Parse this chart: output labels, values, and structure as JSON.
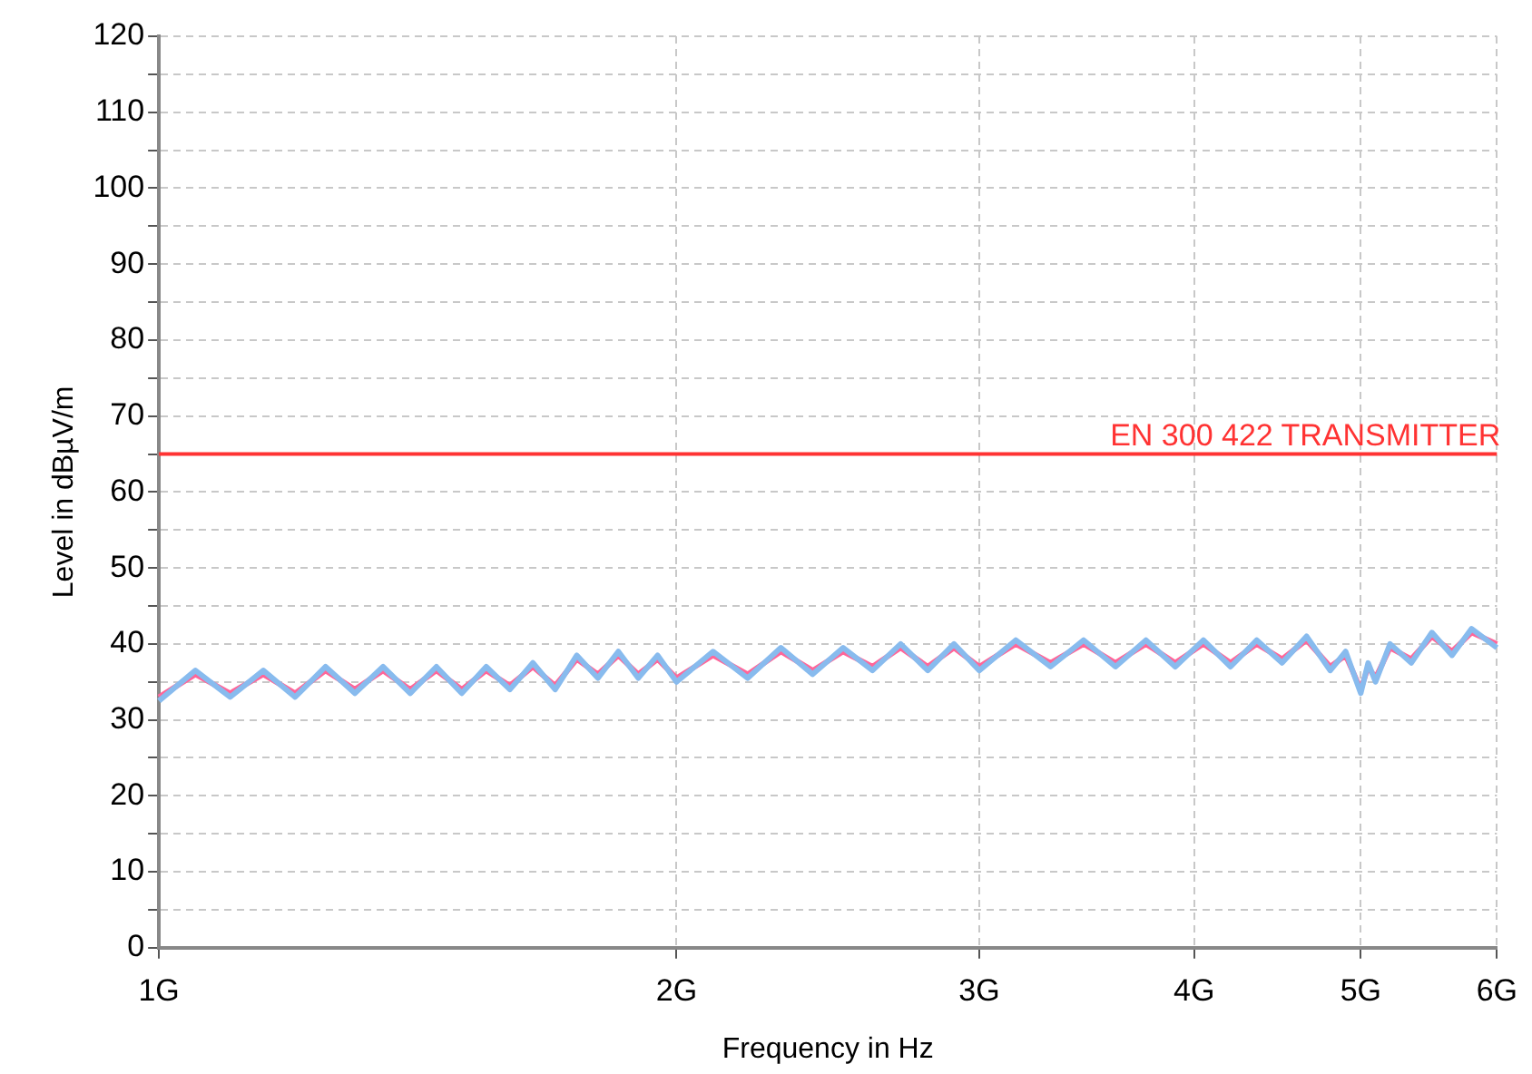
{
  "chart_data": {
    "type": "line",
    "xlabel": "Frequency in Hz",
    "ylabel": "Level in dBµV/m",
    "log": "x",
    "grid": true,
    "legend": false,
    "marker": "none",
    "line_style": "solid",
    "xlim": [
      1,
      6
    ],
    "xticks": [
      {
        "value": 1,
        "label": "1G"
      },
      {
        "value": 2,
        "label": "2G"
      },
      {
        "value": 3,
        "label": "3G"
      },
      {
        "value": 4,
        "label": "4G"
      },
      {
        "value": 5,
        "label": "5G"
      },
      {
        "value": 6,
        "label": "6G"
      }
    ],
    "ylim": [
      0,
      120
    ],
    "yticks": [
      0,
      {
        "value": 5,
        "label": null
      },
      10,
      {
        "value": 15,
        "label": null
      },
      20,
      {
        "value": 25,
        "label": null
      },
      30,
      {
        "value": 35,
        "label": null
      },
      40,
      {
        "value": 45,
        "label": null
      },
      50,
      {
        "value": 55,
        "label": null
      },
      60,
      {
        "value": 65,
        "label": null
      },
      70,
      {
        "value": 75,
        "label": null
      },
      80,
      {
        "value": 85,
        "label": null
      },
      90,
      {
        "value": 95,
        "label": null
      },
      100,
      {
        "value": 105,
        "label": null
      },
      110,
      {
        "value": 115,
        "label": null
      },
      120
    ],
    "x": [
      1,
      1.05,
      1.1,
      1.15,
      1.2,
      1.25,
      1.3,
      1.35,
      1.4,
      1.45,
      1.5,
      1.55,
      1.6,
      1.65,
      1.7,
      1.75,
      1.8,
      1.85,
      1.9,
      1.95,
      2,
      2.1,
      2.2,
      2.3,
      2.4,
      2.5,
      2.6,
      2.7,
      2.8,
      2.9,
      3,
      3.15,
      3.3,
      3.45,
      3.6,
      3.75,
      3.9,
      4.05,
      4.2,
      4.35,
      4.5,
      4.65,
      4.8,
      4.9,
      5,
      5.05,
      5.1,
      5.2,
      5.35,
      5.5,
      5.65,
      5.8,
      6
    ],
    "series": [
      {
        "color": "#88bbee",
        "values": [
          32.5,
          36.5,
          33,
          36.5,
          33,
          37,
          33.5,
          37,
          33.5,
          37,
          33.5,
          37,
          34,
          37.5,
          34,
          38.5,
          35.5,
          39,
          35.5,
          38.5,
          35,
          39,
          35.5,
          39.5,
          36,
          39.5,
          36.5,
          40,
          36.5,
          40,
          36.5,
          40.5,
          37,
          40.5,
          37,
          40.5,
          37,
          40.5,
          37,
          40.5,
          37.5,
          41,
          36.5,
          39,
          33.5,
          37.5,
          35,
          40,
          37.5,
          41.5,
          38.5,
          42,
          39.5
        ]
      },
      {
        "color": "#ff6699",
        "values": [
          33,
          36,
          33.5,
          36,
          33.5,
          36.5,
          34,
          36.5,
          34,
          36.5,
          34,
          36.5,
          34.5,
          37,
          34.5,
          38,
          36,
          38.5,
          36,
          38,
          35.5,
          38.5,
          36,
          39,
          36.5,
          39,
          37,
          39.5,
          37,
          39.5,
          37,
          40,
          37.5,
          40,
          37.5,
          40,
          37.5,
          40,
          37.5,
          40,
          38,
          40.5,
          37,
          38.5,
          34,
          37,
          35.5,
          39.5,
          38,
          41,
          39,
          41.5,
          40
        ]
      }
    ],
    "ref_lines": [
      {
        "axis": "y",
        "value": 65,
        "label": "EN 300 422 TRANSMITTER",
        "color": "#ff3333",
        "line_style": "solid"
      }
    ]
  }
}
